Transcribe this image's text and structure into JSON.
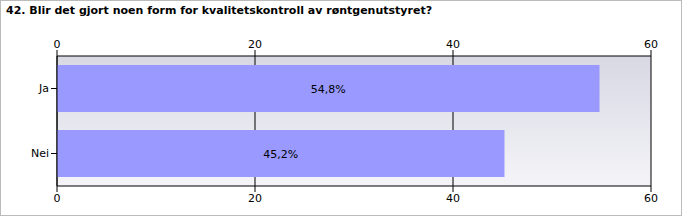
{
  "chart_data": {
    "type": "bar",
    "title": "42. Blir det gjort noen form for kvalitetskontroll av røntgenutstyret?",
    "orientation": "horizontal",
    "categories": [
      "Ja",
      "Nei"
    ],
    "values": [
      54.8,
      45.2
    ],
    "value_labels": [
      "54,8%",
      "45,2%"
    ],
    "data_labels": true,
    "color": "#9999ff",
    "xlim": [
      0,
      60
    ],
    "xticks": [
      0,
      20,
      40,
      60
    ],
    "grid": true
  }
}
